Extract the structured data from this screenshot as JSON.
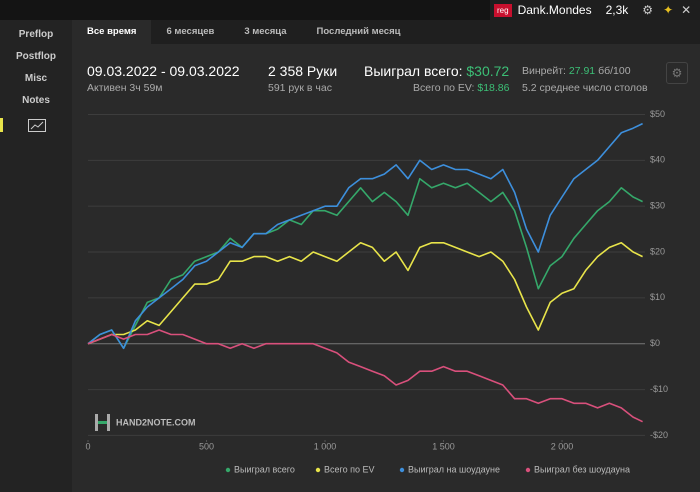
{
  "top_bar": {
    "badge": "reg",
    "user": "Dank.Mondes",
    "count": "2,3k"
  },
  "sidebar": {
    "items": [
      "Preflop",
      "Postflop",
      "Misc",
      "Notes"
    ]
  },
  "tabs": [
    "Все время",
    "6 месяцев",
    "3 месяца",
    "Последний месяц"
  ],
  "stats": {
    "date_range": "09.03.2022 - 09.03.2022",
    "active": "Активен 3ч 59м",
    "hands": "2 358 Руки",
    "hands_per_hour": "591 рук в час",
    "won_label": "Выиграл всего:",
    "won_value": "$30.72",
    "ev_label": "Всего по EV:",
    "ev_value": "$18.86",
    "winrate_label": "Винрейт:",
    "winrate_value": "27.91",
    "winrate_unit": "бб/100",
    "tables": "5.2 среднее число столов"
  },
  "watermark": "HAND2NOTE.COM",
  "chart_data": {
    "type": "line",
    "x": [
      0,
      50,
      100,
      150,
      200,
      250,
      300,
      350,
      400,
      450,
      500,
      550,
      600,
      650,
      700,
      750,
      800,
      850,
      900,
      950,
      1000,
      1050,
      1100,
      1150,
      1200,
      1250,
      1300,
      1350,
      1400,
      1450,
      1500,
      1550,
      1600,
      1650,
      1700,
      1750,
      1800,
      1850,
      1900,
      1950,
      2000,
      2050,
      2100,
      2150,
      2200,
      2250,
      2300,
      2340
    ],
    "series": [
      {
        "name": "Выиграл всего",
        "color": "#35a86a",
        "values": [
          0,
          2,
          3,
          -1,
          4,
          9,
          10,
          14,
          15,
          18,
          19,
          20,
          23,
          21,
          24,
          24,
          25,
          27,
          26,
          29,
          29,
          28,
          31,
          34,
          31,
          33,
          31,
          28,
          36,
          34,
          35,
          34,
          35,
          33,
          31,
          33,
          29,
          21,
          12,
          17,
          19,
          23,
          26,
          29,
          31,
          34,
          32,
          31
        ]
      },
      {
        "name": "Всего по EV",
        "color": "#e8e44a",
        "values": [
          0,
          1,
          2,
          2,
          3,
          5,
          4,
          7,
          10,
          13,
          13,
          14,
          18,
          18,
          19,
          19,
          18,
          19,
          18,
          20,
          19,
          18,
          20,
          22,
          21,
          18,
          20,
          16,
          21,
          22,
          22,
          21,
          20,
          19,
          20,
          18,
          14,
          8,
          3,
          9,
          11,
          12,
          16,
          19,
          21,
          22,
          20,
          19
        ]
      },
      {
        "name": "Выиграл на шоудауне",
        "color": "#3d8fdc",
        "values": [
          0,
          2,
          3,
          -1,
          5,
          8,
          10,
          12,
          14,
          17,
          18,
          20,
          22,
          21,
          24,
          24,
          26,
          27,
          28,
          29,
          30,
          30,
          34,
          36,
          36,
          37,
          39,
          36,
          40,
          38,
          39,
          38,
          38,
          37,
          36,
          38,
          33,
          25,
          20,
          28,
          32,
          36,
          38,
          40,
          43,
          46,
          47,
          48
        ]
      },
      {
        "name": "Выиграл без шоудауна",
        "color": "#d9507c",
        "values": [
          0,
          1,
          2,
          1,
          2,
          2,
          3,
          2,
          2,
          1,
          0,
          0,
          -1,
          0,
          -1,
          0,
          0,
          0,
          0,
          0,
          -1,
          -2,
          -4,
          -5,
          -6,
          -7,
          -9,
          -8,
          -6,
          -6,
          -5,
          -6,
          -6,
          -7,
          -8,
          -9,
          -12,
          -12,
          -13,
          -12,
          -12,
          -13,
          -13,
          -14,
          -13,
          -14,
          -16,
          -17
        ]
      }
    ],
    "xlim": [
      0,
      2350
    ],
    "ylim": [
      -21,
      52.5
    ],
    "xticks": [
      0,
      500,
      {
        "value": 1000,
        "label": "1 000"
      },
      {
        "value": 1500,
        "label": "1 500"
      },
      {
        "value": 2000,
        "label": "2 000"
      }
    ],
    "yticks": [
      {
        "value": 50,
        "label": "$50"
      },
      {
        "value": 40,
        "label": "$40"
      },
      {
        "value": 30,
        "label": "$30"
      },
      {
        "value": 20,
        "label": "$20"
      },
      {
        "value": 10,
        "label": "$10"
      },
      {
        "value": 0,
        "label": "$0"
      },
      {
        "value": -10,
        "label": "-$10"
      },
      {
        "value": -20,
        "label": "-$20"
      }
    ],
    "grid": true
  }
}
